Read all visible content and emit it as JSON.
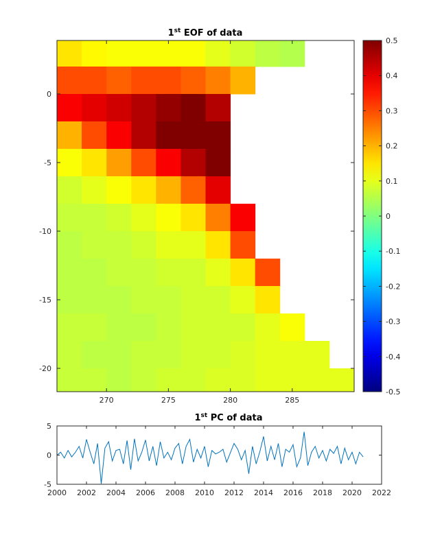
{
  "chart_data": [
    {
      "type": "heatmap",
      "title": [
        "1",
        "st",
        " EOF of data"
      ],
      "colormap": "jet",
      "x": [
        267,
        269,
        271,
        273,
        275,
        277,
        279,
        281,
        283,
        285,
        287,
        289
      ],
      "y": [
        3,
        1,
        -1,
        -3,
        -5,
        -7,
        -9,
        -11,
        -13,
        -15,
        -17,
        -19,
        -21
      ],
      "z": [
        [
          0.15,
          0.13,
          0.12,
          0.12,
          0.12,
          0.12,
          0.1,
          0.08,
          0.06,
          0.05,
          null,
          null
        ],
        [
          0.3,
          0.3,
          0.28,
          0.3,
          0.3,
          0.28,
          0.25,
          0.2,
          null,
          null,
          null,
          null
        ],
        [
          0.38,
          0.4,
          0.42,
          0.45,
          0.48,
          0.5,
          0.45,
          null,
          null,
          null,
          null,
          null
        ],
        [
          0.2,
          0.3,
          0.38,
          0.45,
          0.5,
          0.5,
          0.5,
          null,
          null,
          null,
          null,
          null
        ],
        [
          0.12,
          0.15,
          0.22,
          0.3,
          0.38,
          0.45,
          0.5,
          null,
          null,
          null,
          null,
          null
        ],
        [
          0.08,
          0.1,
          0.12,
          0.15,
          0.2,
          0.28,
          0.4,
          null,
          null,
          null,
          null,
          null
        ],
        [
          0.07,
          0.07,
          0.08,
          0.1,
          0.12,
          0.15,
          0.25,
          0.38,
          null,
          null,
          null,
          null
        ],
        [
          0.06,
          0.07,
          0.07,
          0.08,
          0.1,
          0.1,
          0.15,
          0.3,
          null,
          null,
          null,
          null
        ],
        [
          0.06,
          0.06,
          0.07,
          0.07,
          0.08,
          0.08,
          0.1,
          0.15,
          0.3,
          null,
          null,
          null
        ],
        [
          0.06,
          0.06,
          0.06,
          0.07,
          0.07,
          0.08,
          0.08,
          0.1,
          0.15,
          null,
          null,
          null
        ],
        [
          0.07,
          0.07,
          0.06,
          0.06,
          0.07,
          0.08,
          0.08,
          0.08,
          0.1,
          0.12,
          null,
          null
        ],
        [
          0.07,
          0.06,
          0.06,
          0.07,
          0.07,
          0.08,
          0.08,
          0.09,
          0.1,
          0.1,
          0.1,
          null
        ],
        [
          0.07,
          0.07,
          0.06,
          0.07,
          0.08,
          0.08,
          0.09,
          0.09,
          0.1,
          0.1,
          0.1,
          0.1
        ]
      ],
      "xlim": [
        266,
        290
      ],
      "ylim": [
        -21.7,
        3.9
      ],
      "xticks": [
        270,
        275,
        280,
        285
      ],
      "yticks": [
        0,
        -5,
        -10,
        -15,
        -20
      ],
      "clim": [
        -0.5,
        0.5
      ],
      "cticks": [
        0.5,
        0.4,
        0.3,
        0.2,
        0.1,
        0,
        -0.1,
        -0.2,
        -0.3,
        -0.4,
        -0.5
      ]
    },
    {
      "type": "line",
      "title": [
        "1",
        "st",
        " PC of data"
      ],
      "x": [
        2000,
        2000.25,
        2000.5,
        2000.75,
        2001,
        2001.25,
        2001.5,
        2001.75,
        2002,
        2002.25,
        2002.5,
        2002.75,
        2003,
        2003.25,
        2003.5,
        2003.75,
        2004,
        2004.25,
        2004.5,
        2004.75,
        2005,
        2005.25,
        2005.5,
        2005.75,
        2006,
        2006.25,
        2006.5,
        2006.75,
        2007,
        2007.25,
        2007.5,
        2007.75,
        2008,
        2008.25,
        2008.5,
        2008.75,
        2009,
        2009.25,
        2009.5,
        2009.75,
        2010,
        2010.25,
        2010.5,
        2010.75,
        2011,
        2011.25,
        2011.5,
        2011.75,
        2012,
        2012.25,
        2012.5,
        2012.75,
        2013,
        2013.25,
        2013.5,
        2013.75,
        2014,
        2014.25,
        2014.5,
        2014.75,
        2015,
        2015.25,
        2015.5,
        2015.75,
        2016,
        2016.25,
        2016.5,
        2016.75,
        2017,
        2017.25,
        2017.5,
        2017.75,
        2018,
        2018.25,
        2018.5,
        2018.75,
        2019,
        2019.25,
        2019.5,
        2019.75,
        2020,
        2020.25,
        2020.5,
        2020.75
      ],
      "series": [
        {
          "color": "#0072bd",
          "values": [
            0,
            0.5,
            -0.5,
            0.8,
            -0.3,
            0.5,
            1.5,
            -0.5,
            2.7,
            0.5,
            -1.5,
            2.0,
            -4.9,
            1.2,
            2.3,
            -1,
            0.8,
            1.0,
            -1.5,
            2.5,
            -2.5,
            2.8,
            -1.0,
            0.5,
            2.6,
            -1.0,
            1.5,
            -1.8,
            2.3,
            -0.5,
            0.5,
            -0.8,
            1.2,
            2.0,
            -1.5,
            1.5,
            2.7,
            -1.2,
            1.0,
            -0.5,
            1.5,
            -2.0,
            0.8,
            0.2,
            0.5,
            1.0,
            -1.2,
            0.4,
            2.0,
            1.0,
            -0.8,
            0.8,
            -3.2,
            1.5,
            -1.5,
            0.6,
            3.2,
            -1.0,
            1.5,
            -0.8,
            2.0,
            -2.0,
            1.0,
            0.5,
            1.8,
            -2.0,
            -0.5,
            4.0,
            -1.8,
            0.5,
            1.5,
            -0.5,
            0.8,
            -1.0,
            1.0,
            0.3,
            1.5,
            -1.5,
            1.2,
            -0.8,
            0.5,
            -1.5,
            0.5,
            -0.3
          ]
        }
      ],
      "xlim": [
        2000,
        2022
      ],
      "ylim": [
        -5,
        5
      ],
      "xticks": [
        2000,
        2002,
        2004,
        2006,
        2008,
        2010,
        2012,
        2014,
        2016,
        2018,
        2020,
        2022
      ],
      "yticks": [
        -5,
        0,
        5
      ]
    }
  ]
}
